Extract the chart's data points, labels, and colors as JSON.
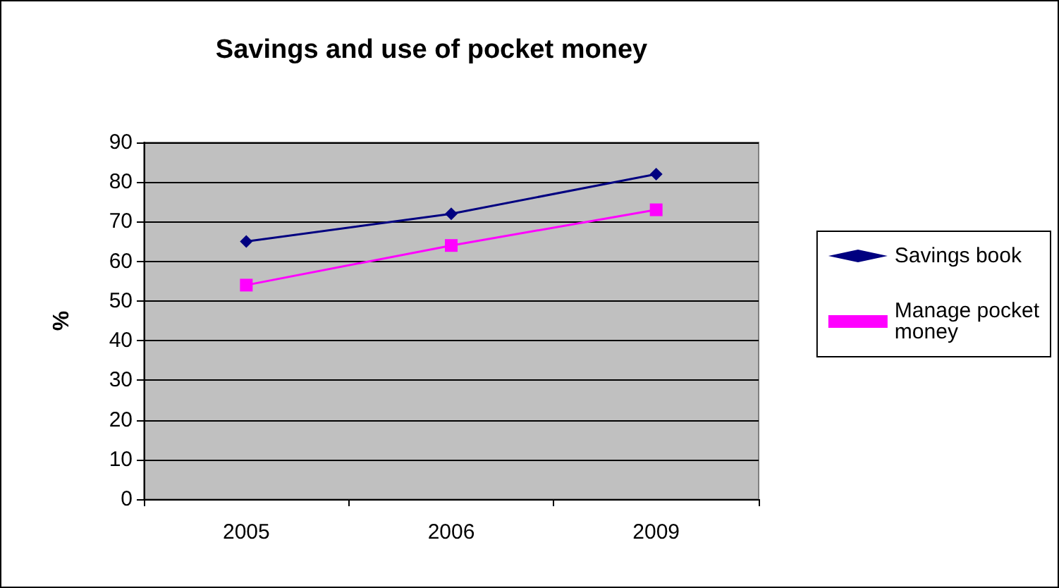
{
  "chart_data": {
    "type": "line",
    "title": "Savings and use of pocket money",
    "ylabel": "%",
    "categories": [
      "2005",
      "2006",
      "2009"
    ],
    "series": [
      {
        "name": "Savings book",
        "color": "#000080",
        "marker": "diamond",
        "values": [
          65,
          72,
          82
        ]
      },
      {
        "name": "Manage pocket money",
        "color": "#ff00ff",
        "marker": "square",
        "values": [
          54,
          64,
          73
        ]
      }
    ],
    "ylim": [
      0,
      90
    ],
    "yticks": [
      0,
      10,
      20,
      30,
      40,
      50,
      60,
      70,
      80,
      90
    ],
    "grid": "y",
    "legend": "right",
    "line_style": "solid"
  }
}
